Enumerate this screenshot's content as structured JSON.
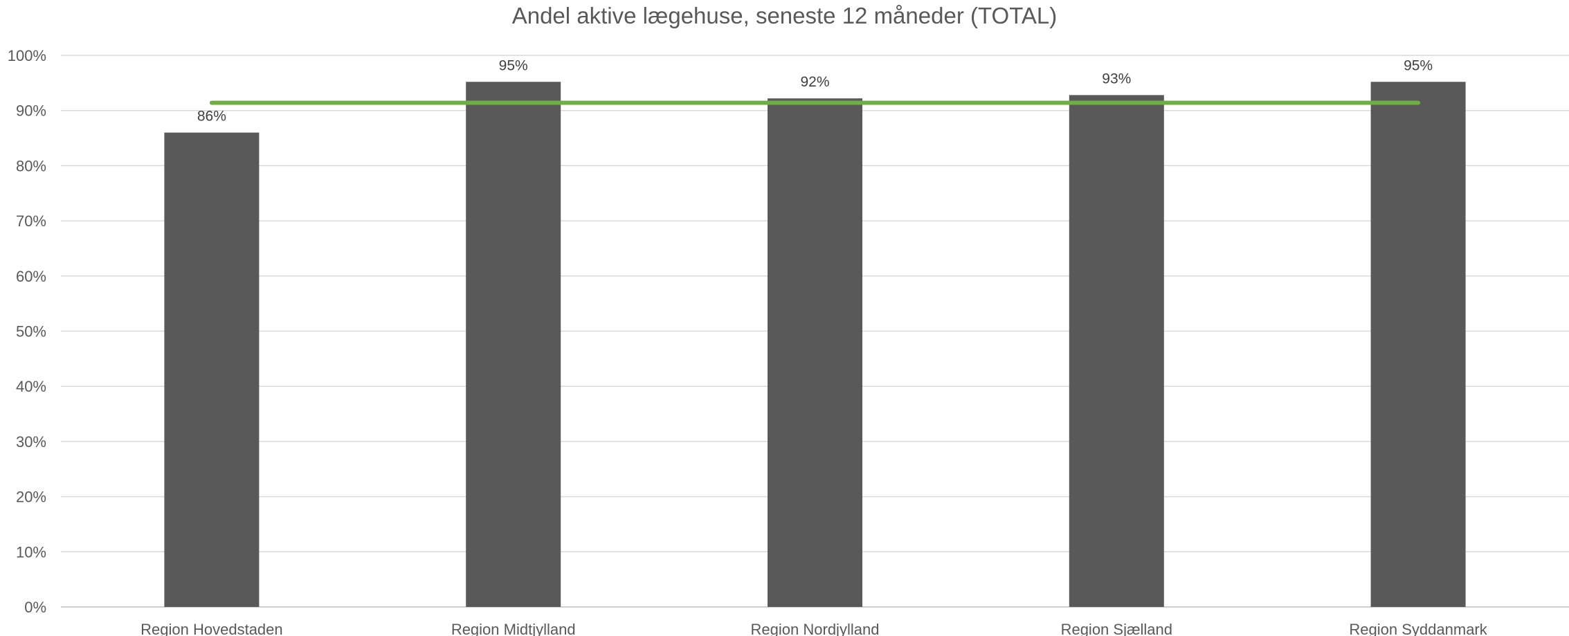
{
  "chart_data": {
    "type": "bar",
    "title": "Andel aktive lægehuse, seneste 12 måneder (TOTAL)",
    "categories": [
      "Region Hovedstaden",
      "Region Midtjylland",
      "Region Nordjylland",
      "Region Sjælland",
      "Region Syddanmark"
    ],
    "series": [
      {
        "type": "bar",
        "values": [
          0.86,
          0.952,
          0.922,
          0.928,
          0.952
        ],
        "data_labels": [
          "86%",
          "95%",
          "92%",
          "93%",
          "95%"
        ],
        "color": "#595959"
      },
      {
        "type": "line",
        "values": [
          0.914,
          0.914,
          0.914,
          0.914,
          0.914
        ],
        "color": "#70AD47"
      }
    ],
    "ylim": [
      0,
      1
    ],
    "yticks": [
      0,
      0.1,
      0.2,
      0.3,
      0.4,
      0.5,
      0.6,
      0.7,
      0.8,
      0.9,
      1.0
    ],
    "ytick_labels": [
      "0%",
      "10%",
      "20%",
      "30%",
      "40%",
      "50%",
      "60%",
      "70%",
      "80%",
      "90%",
      "100%"
    ],
    "grid": true,
    "legend": false
  }
}
